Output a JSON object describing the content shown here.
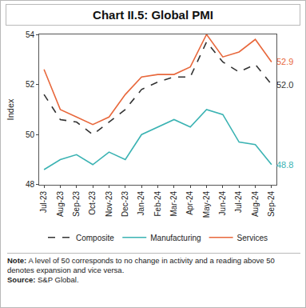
{
  "chart_data": {
    "type": "line",
    "title": "Chart II.5: Global PMI",
    "y_label": "Index",
    "categories": [
      "Jul-23",
      "Aug-23",
      "Sep-23",
      "Oct-23",
      "Nov-23",
      "Dec-23",
      "Jan-24",
      "Feb-24",
      "Mar-24",
      "Apr-24",
      "May-24",
      "Jun-24",
      "Jul-24",
      "Aug-24",
      "Sep-24"
    ],
    "series": [
      {
        "name": "Composite",
        "color": "#333333",
        "line_style": "dashed",
        "values": [
          51.6,
          50.6,
          50.5,
          50.0,
          50.5,
          51.0,
          51.8,
          52.1,
          52.3,
          52.3,
          53.7,
          52.9,
          52.5,
          52.8,
          52.0
        ]
      },
      {
        "name": "Manufacturing",
        "color": "#3bb3b3",
        "line_style": "solid",
        "values": [
          48.6,
          49.0,
          49.2,
          48.8,
          49.3,
          49.0,
          50.0,
          50.3,
          50.6,
          50.3,
          51.0,
          50.8,
          49.7,
          49.6,
          48.8
        ]
      },
      {
        "name": "Services",
        "color": "#e8683c",
        "line_style": "solid",
        "values": [
          52.6,
          51.0,
          50.7,
          50.4,
          50.7,
          51.6,
          52.3,
          52.4,
          52.4,
          52.7,
          54.0,
          53.1,
          53.3,
          53.8,
          52.9
        ]
      }
    ],
    "annotations": [
      {
        "x": "Sep-24",
        "y": 52.9,
        "text": "52.9",
        "color": "#e8683c"
      },
      {
        "x": "Sep-24",
        "y": 52.0,
        "text": "52.0",
        "color": "#333333"
      },
      {
        "x": "Sep-24",
        "y": 48.8,
        "text": "48.8",
        "color": "#3bb3b3"
      }
    ],
    "ylim": [
      48,
      54
    ],
    "yticks": [
      48,
      50,
      52,
      54
    ],
    "grid": false,
    "legend": "bottom",
    "note": "A level of 50 corresponds to no change in activity and a reading above 50 denotes expansion and vice versa.",
    "note_label": "Note:",
    "source": "S&P Global.",
    "source_label": "Source:"
  }
}
